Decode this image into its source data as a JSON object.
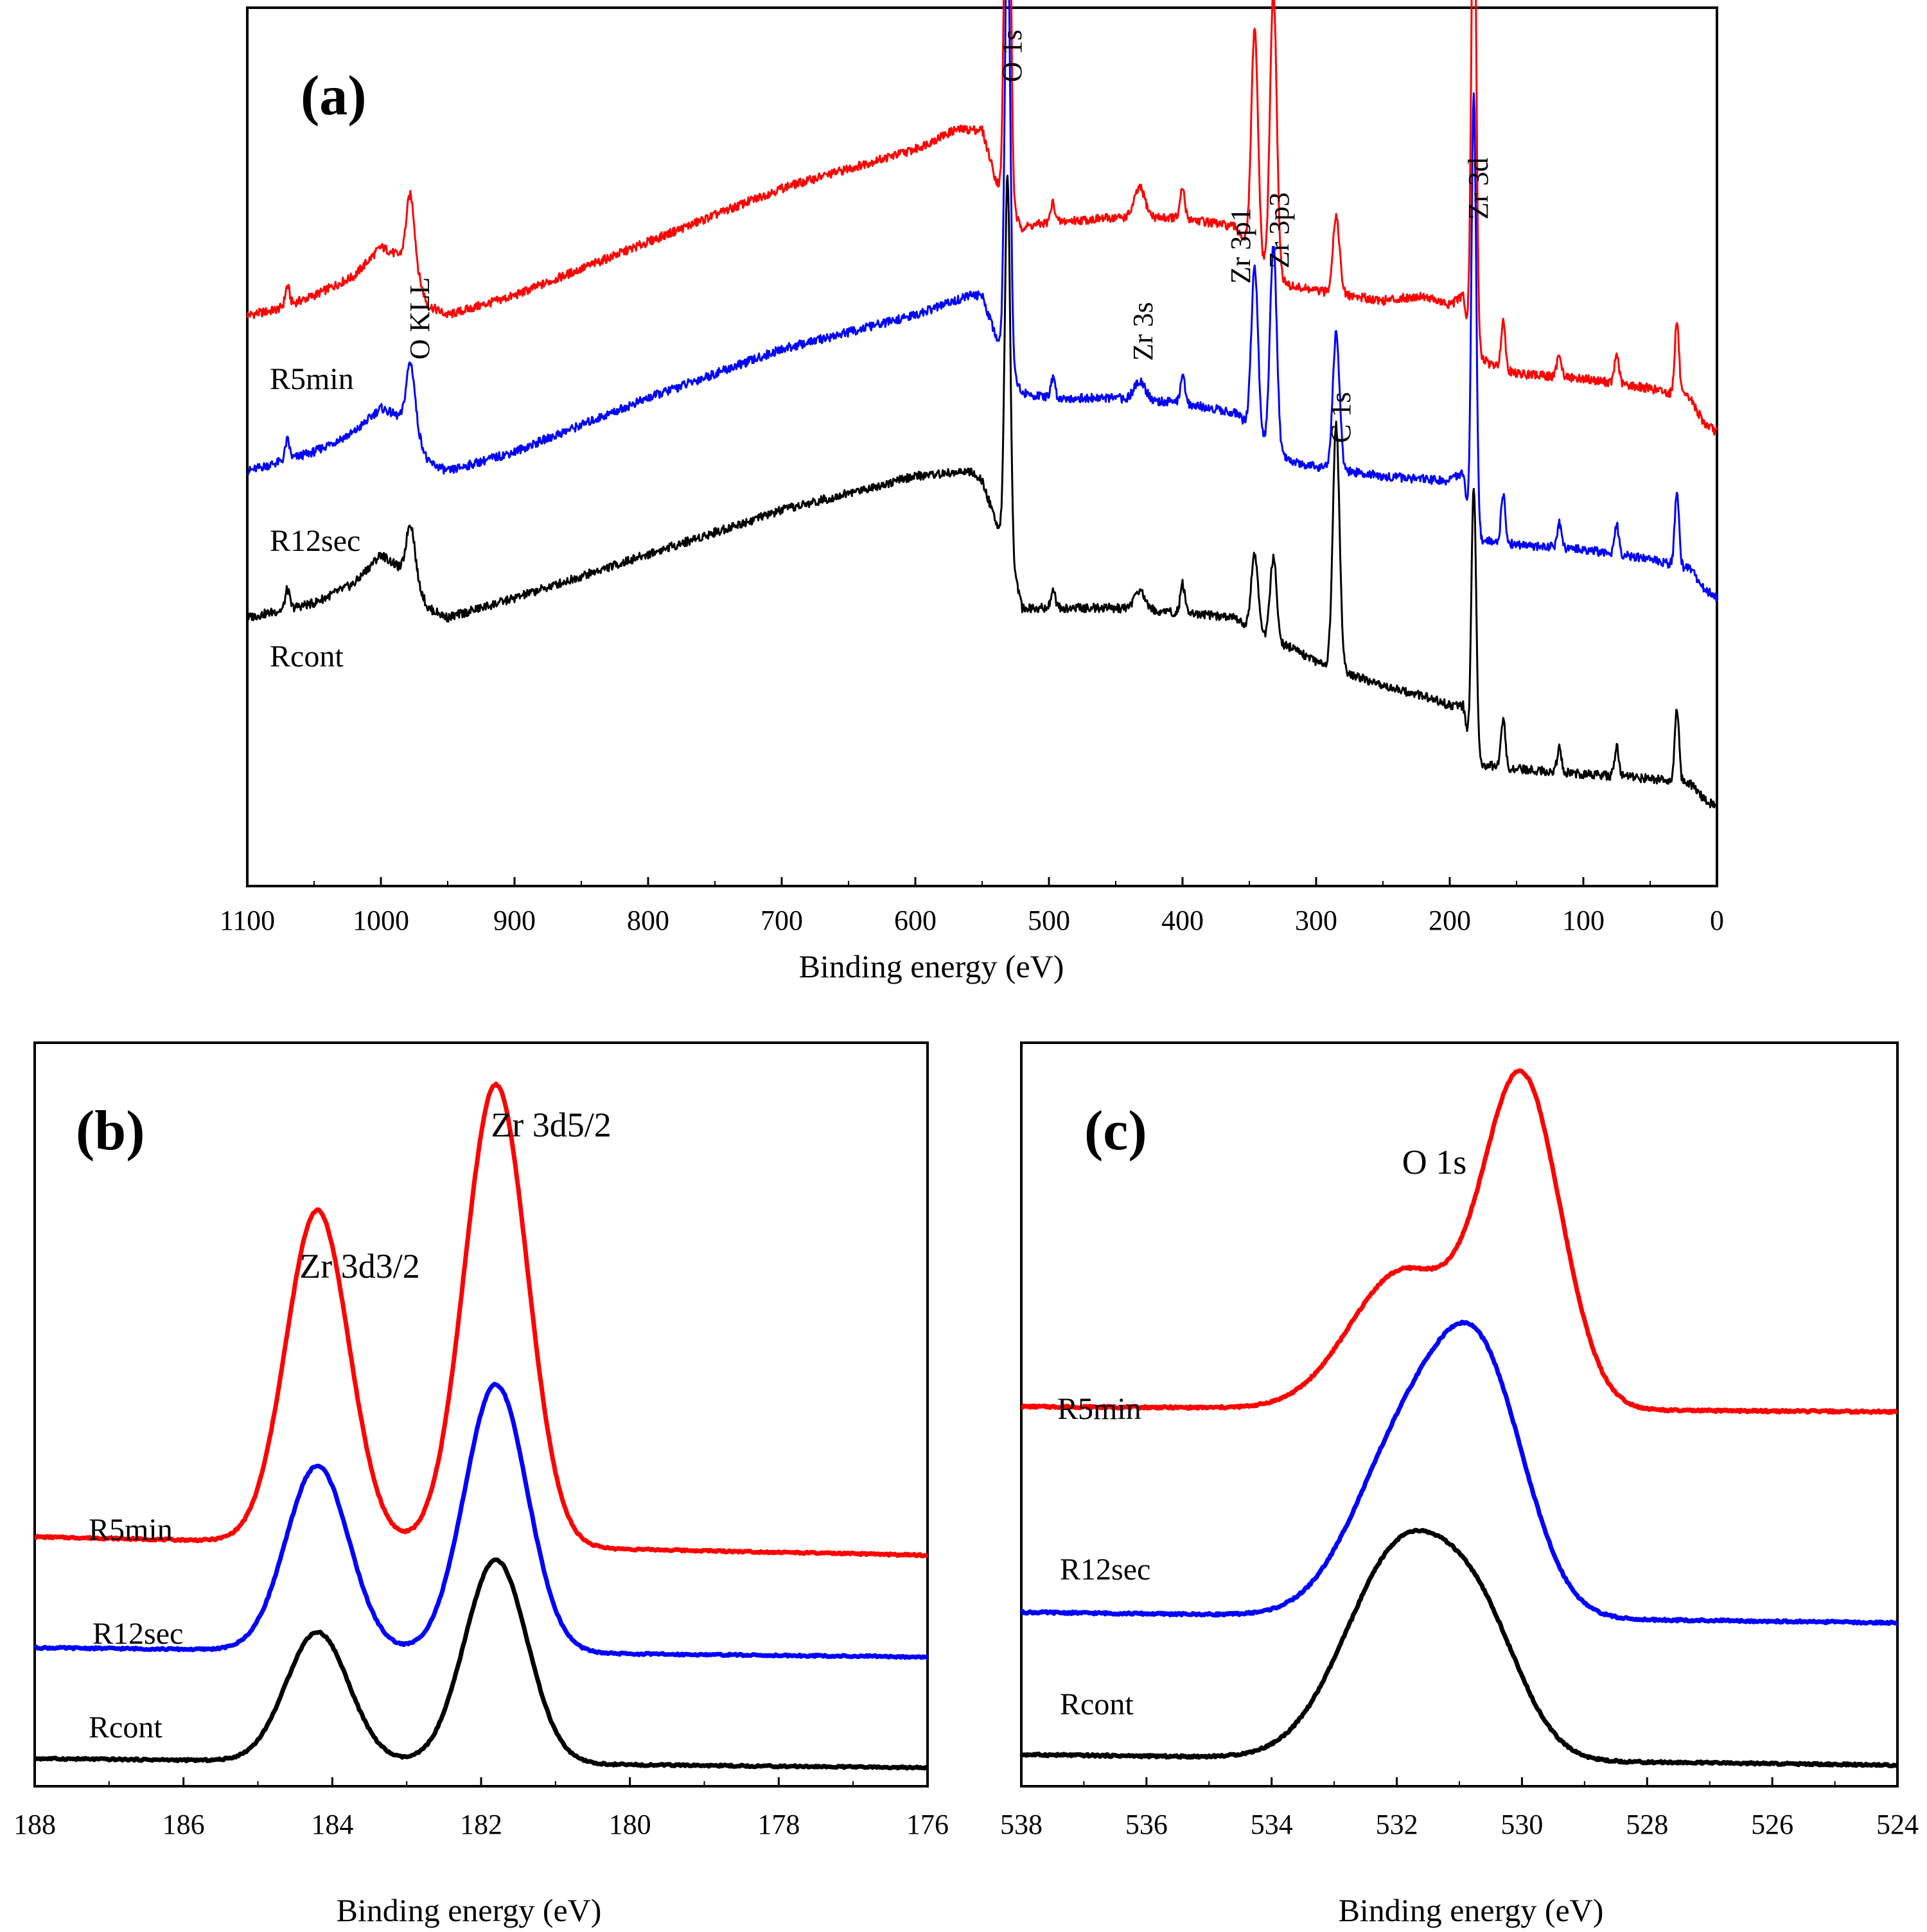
{
  "chart_data": [
    {
      "panel": "(a)",
      "type": "line",
      "xlabel": "Binding energy (eV)",
      "ylabel": "",
      "xlim": [
        1100,
        0
      ],
      "x_reversed": true,
      "xticks": [
        1100,
        1000,
        900,
        800,
        700,
        600,
        500,
        400,
        300,
        200,
        100,
        0
      ],
      "grid": false,
      "series": [
        {
          "name": "R5min",
          "color": "#ff0000",
          "offset": 0.62,
          "base": [
            [
              1100,
              0.0
            ],
            [
              1080,
              0.01
            ],
            [
              1050,
              0.04
            ],
            [
              1020,
              0.08
            ],
            [
              1000,
              0.14
            ],
            [
              985,
              0.12
            ],
            [
              975,
              0.1
            ],
            [
              965,
              0.02
            ],
            [
              950,
              0.0
            ],
            [
              900,
              0.04
            ],
            [
              800,
              0.15
            ],
            [
              700,
              0.26
            ],
            [
              600,
              0.34
            ],
            [
              570,
              0.38
            ],
            [
              550,
              0.38
            ],
            [
              540,
              0.28
            ],
            [
              530,
              0.22
            ],
            [
              520,
              0.18
            ],
            [
              500,
              0.19
            ],
            [
              450,
              0.2
            ],
            [
              400,
              0.2
            ],
            [
              360,
              0.18
            ],
            [
              340,
              0.1
            ],
            [
              320,
              0.06
            ],
            [
              300,
              0.05
            ],
            [
              250,
              0.03
            ],
            [
              220,
              0.04
            ],
            [
              200,
              0.02
            ],
            [
              190,
              0.04
            ],
            [
              185,
              -0.06
            ],
            [
              180,
              -0.08
            ],
            [
              170,
              -0.1
            ],
            [
              150,
              -0.12
            ],
            [
              100,
              -0.13
            ],
            [
              50,
              -0.15
            ],
            [
              20,
              -0.17
            ],
            [
              10,
              -0.22
            ],
            [
              0,
              -0.24
            ]
          ]
        },
        {
          "name": "R12sec",
          "color": "#0000ff",
          "offset": 0.3,
          "base": [
            [
              1100,
              0.0
            ],
            [
              1050,
              0.04
            ],
            [
              1020,
              0.08
            ],
            [
              1000,
              0.13
            ],
            [
              985,
              0.11
            ],
            [
              975,
              0.1
            ],
            [
              965,
              0.02
            ],
            [
              950,
              0.0
            ],
            [
              900,
              0.04
            ],
            [
              800,
              0.15
            ],
            [
              700,
              0.25
            ],
            [
              600,
              0.32
            ],
            [
              560,
              0.36
            ],
            [
              550,
              0.36
            ],
            [
              540,
              0.28
            ],
            [
              530,
              0.22
            ],
            [
              520,
              0.16
            ],
            [
              500,
              0.15
            ],
            [
              450,
              0.15
            ],
            [
              400,
              0.14
            ],
            [
              360,
              0.12
            ],
            [
              340,
              0.06
            ],
            [
              320,
              0.02
            ],
            [
              300,
              0.01
            ],
            [
              250,
              -0.01
            ],
            [
              200,
              -0.02
            ],
            [
              190,
              0.0
            ],
            [
              185,
              -0.12
            ],
            [
              180,
              -0.14
            ],
            [
              150,
              -0.15
            ],
            [
              100,
              -0.16
            ],
            [
              50,
              -0.18
            ],
            [
              20,
              -0.2
            ],
            [
              10,
              -0.24
            ],
            [
              0,
              -0.26
            ]
          ]
        },
        {
          "name": "Rcont",
          "color": "#000000",
          "offset": 0.0,
          "base": [
            [
              1100,
              0.0
            ],
            [
              1050,
              0.03
            ],
            [
              1020,
              0.07
            ],
            [
              1000,
              0.13
            ],
            [
              985,
              0.1
            ],
            [
              975,
              0.09
            ],
            [
              965,
              0.02
            ],
            [
              950,
              0.0
            ],
            [
              900,
              0.04
            ],
            [
              800,
              0.13
            ],
            [
              700,
              0.22
            ],
            [
              600,
              0.29
            ],
            [
              560,
              0.3
            ],
            [
              550,
              0.28
            ],
            [
              540,
              0.2
            ],
            [
              530,
              0.14
            ],
            [
              520,
              0.02
            ],
            [
              500,
              0.02
            ],
            [
              450,
              0.02
            ],
            [
              400,
              0.01
            ],
            [
              360,
              0.0
            ],
            [
              340,
              -0.04
            ],
            [
              320,
              -0.06
            ],
            [
              300,
              -0.09
            ],
            [
              250,
              -0.14
            ],
            [
              220,
              -0.16
            ],
            [
              200,
              -0.18
            ],
            [
              190,
              -0.18
            ],
            [
              185,
              -0.28
            ],
            [
              180,
              -0.3
            ],
            [
              150,
              -0.31
            ],
            [
              100,
              -0.32
            ],
            [
              50,
              -0.33
            ],
            [
              20,
              -0.34
            ],
            [
              10,
              -0.37
            ],
            [
              0,
              -0.39
            ]
          ]
        }
      ],
      "peaks": [
        {
          "name": "O KLL",
          "x": 978,
          "heights": [
            0.14,
            0.12,
            0.1
          ],
          "width": 3
        },
        {
          "name": "O 1s",
          "x": 531,
          "heights": [
            1.18,
            0.92,
            0.76
          ],
          "width": 2
        },
        {
          "name": "Zr 3s",
          "x": 432,
          "heights": [
            0.06,
            0.04,
            0.04
          ],
          "width": 4
        },
        {
          "name": "Zr 3p1",
          "x": 346,
          "heights": [
            0.46,
            0.34,
            0.16
          ],
          "width": 2.5
        },
        {
          "name": "Zr 3p3",
          "x": 332,
          "heights": [
            0.58,
            0.42,
            0.17
          ],
          "width": 2.5
        },
        {
          "name": "C 1s",
          "x": 285,
          "heights": [
            0.16,
            0.28,
            0.5
          ],
          "width": 2.5
        },
        {
          "name": "Zr 3d",
          "x": 182,
          "heights": [
            1.05,
            0.9,
            0.56
          ],
          "width": 1.8
        }
      ],
      "minor_peaks": [
        [
          1070,
          0.04
        ],
        [
          497,
          0.04
        ],
        [
          400,
          0.06
        ],
        [
          160,
          0.1
        ],
        [
          118,
          0.05
        ],
        [
          75,
          0.06
        ],
        [
          30,
          0.15
        ]
      ],
      "peak_labels": [
        "O KLL",
        "O 1s",
        "Zr 3s",
        "Zr 3p1",
        "Zr 3p3",
        "C 1s",
        "Zr 3d"
      ],
      "series_labels": [
        "R5min",
        "R12sec",
        "Rcont"
      ]
    },
    {
      "panel": "(b)",
      "type": "line",
      "xlabel": "Binding energy (eV)",
      "ylabel": "",
      "xlim": [
        188,
        176
      ],
      "x_reversed": true,
      "xticks": [
        188,
        186,
        184,
        182,
        180,
        178,
        176
      ],
      "grid": false,
      "series": [
        {
          "name": "R5min",
          "color": "#ff0000",
          "offset": 0.48,
          "baseline_left": 0.0,
          "baseline_right": -0.04,
          "peaks": [
            {
              "x": 184.2,
              "h": 0.72,
              "s": 0.42
            },
            {
              "x": 181.8,
              "h": 1.0,
              "s": 0.42
            }
          ]
        },
        {
          "name": "R12sec",
          "color": "#0000ff",
          "offset": 0.24,
          "baseline_left": 0.0,
          "baseline_right": -0.02,
          "peaks": [
            {
              "x": 184.2,
              "h": 0.4,
              "s": 0.42
            },
            {
              "x": 181.8,
              "h": 0.58,
              "s": 0.42
            }
          ]
        },
        {
          "name": "Rcont",
          "color": "#000000",
          "offset": 0.0,
          "baseline_left": 0.0,
          "baseline_right": -0.02,
          "peaks": [
            {
              "x": 184.2,
              "h": 0.28,
              "s": 0.42
            },
            {
              "x": 181.8,
              "h": 0.44,
              "s": 0.42
            }
          ]
        }
      ],
      "peak_labels": [
        "Zr 3d3/2",
        "Zr 3d5/2"
      ],
      "series_labels": [
        "R5min",
        "R12sec",
        "Rcont"
      ]
    },
    {
      "panel": "(c)",
      "type": "line",
      "xlabel": "Binding energy (eV)",
      "ylabel": "",
      "xlim": [
        538,
        524
      ],
      "x_reversed": true,
      "xticks": [
        538,
        536,
        534,
        532,
        530,
        528,
        526,
        524
      ],
      "grid": false,
      "series": [
        {
          "name": "R5min",
          "color": "#ff0000",
          "offset": 0.66,
          "baseline_left": 0.0,
          "baseline_right": -0.01,
          "peaks": [
            {
              "x": 530.0,
              "h": 0.62,
              "s": 0.62
            },
            {
              "x": 531.9,
              "h": 0.26,
              "s": 0.85
            }
          ]
        },
        {
          "name": "R12sec",
          "color": "#0000ff",
          "offset": 0.27,
          "baseline_left": 0.0,
          "baseline_right": -0.02,
          "peaks": [
            {
              "x": 530.6,
              "h": 0.4,
              "s": 0.7
            },
            {
              "x": 531.8,
              "h": 0.34,
              "s": 0.85
            }
          ]
        },
        {
          "name": "Rcont",
          "color": "#000000",
          "offset": 0.0,
          "baseline_left": 0.0,
          "baseline_right": -0.02,
          "peaks": [
            {
              "x": 531.9,
              "h": 0.4,
              "s": 0.9
            },
            {
              "x": 530.6,
              "h": 0.18,
              "s": 0.65
            }
          ]
        }
      ],
      "peak_labels": [
        "O 1s"
      ],
      "series_labels": [
        "R5min",
        "R12sec",
        "Rcont"
      ]
    }
  ]
}
